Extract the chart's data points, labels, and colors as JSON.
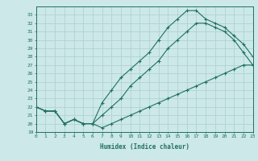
{
  "xlabel": "Humidex (Indice chaleur)",
  "bg_color": "#cce8e8",
  "grid_color": "#aacfcf",
  "line_color": "#207060",
  "hours": [
    0,
    1,
    2,
    3,
    4,
    5,
    6,
    7,
    8,
    9,
    10,
    11,
    12,
    13,
    14,
    15,
    16,
    17,
    18,
    19,
    20,
    21,
    22,
    23
  ],
  "line_min": [
    22.0,
    21.5,
    21.5,
    20.0,
    20.5,
    20.0,
    20.0,
    19.5,
    20.0,
    20.5,
    21.0,
    21.5,
    22.0,
    22.5,
    23.0,
    23.5,
    24.0,
    24.5,
    25.0,
    25.5,
    26.0,
    26.5,
    27.0,
    27.0
  ],
  "line_max": [
    22.0,
    21.5,
    21.5,
    20.0,
    20.5,
    20.0,
    20.0,
    22.5,
    24.0,
    25.5,
    26.5,
    27.5,
    28.5,
    30.0,
    31.5,
    32.5,
    33.5,
    33.5,
    32.5,
    32.0,
    31.5,
    30.5,
    29.5,
    28.0
  ],
  "line_mean": [
    22.0,
    21.5,
    21.5,
    20.0,
    20.5,
    20.0,
    20.0,
    21.0,
    22.0,
    23.0,
    24.5,
    25.5,
    26.5,
    27.5,
    29.0,
    30.0,
    31.0,
    32.0,
    32.0,
    31.5,
    31.0,
    30.0,
    28.5,
    27.0
  ],
  "xlim": [
    0,
    23
  ],
  "ylim": [
    19,
    34
  ],
  "yticks": [
    19,
    20,
    21,
    22,
    23,
    24,
    25,
    26,
    27,
    28,
    29,
    30,
    31,
    32,
    33
  ],
  "xticks": [
    0,
    1,
    2,
    3,
    4,
    5,
    6,
    7,
    8,
    9,
    10,
    11,
    12,
    13,
    14,
    15,
    16,
    17,
    18,
    19,
    20,
    21,
    22,
    23
  ]
}
